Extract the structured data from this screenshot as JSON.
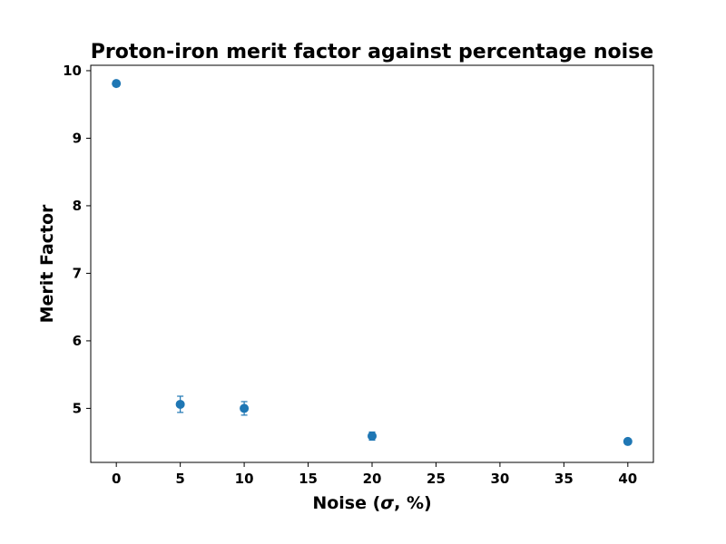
{
  "chart_data": {
    "type": "scatter",
    "title": "Proton-iron merit factor against percentage noise",
    "xlabel_prefix": "Noise (",
    "xlabel_symbol": "σ",
    "xlabel_suffix": ", %)",
    "ylabel": "Merit Factor",
    "xlim": [
      -2,
      42
    ],
    "ylim": [
      4.2,
      10.08
    ],
    "xticks": [
      0,
      5,
      10,
      15,
      20,
      25,
      30,
      35,
      40
    ],
    "yticks": [
      5,
      6,
      7,
      8,
      9,
      10
    ],
    "grid": false,
    "marker_color": "#1f77b4",
    "points": [
      {
        "x": 0,
        "y": 9.81,
        "err": 0.03
      },
      {
        "x": 5,
        "y": 5.06,
        "err": 0.12
      },
      {
        "x": 10,
        "y": 5.0,
        "err": 0.1
      },
      {
        "x": 20,
        "y": 4.59,
        "err": 0.06
      },
      {
        "x": 40,
        "y": 4.51,
        "err": 0.04
      }
    ]
  }
}
